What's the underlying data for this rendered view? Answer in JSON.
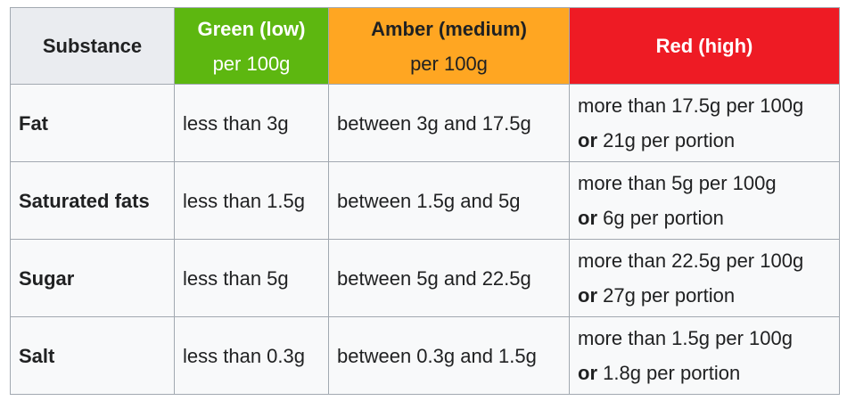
{
  "header": {
    "substance_label": "Substance",
    "green": {
      "title": "Green (low)",
      "subtitle": "per 100g",
      "color": "#5db710"
    },
    "amber": {
      "title": "Amber (medium)",
      "subtitle": "per 100g",
      "color": "#ffa622"
    },
    "red": {
      "title": "Red (high)",
      "color": "#ee1b24"
    }
  },
  "rows": [
    {
      "substance": "Fat",
      "green": "less than 3g",
      "amber": "between 3g and 17.5g",
      "red_line1": "more than 17.5g per 100g",
      "red_or": "or",
      "red_line2": " 21g per portion"
    },
    {
      "substance": "Saturated fats",
      "green": "less than 1.5g",
      "amber": "between 1.5g and 5g",
      "red_line1": "more than 5g per 100g",
      "red_or": "or",
      "red_line2": " 6g per portion"
    },
    {
      "substance": "Sugar",
      "green": "less than 5g",
      "amber": "between 5g and 22.5g",
      "red_line1": "more than 22.5g per 100g",
      "red_or": "or",
      "red_line2": " 27g per portion"
    },
    {
      "substance": "Salt",
      "green": "less than 0.3g",
      "amber": "between 0.3g and 1.5g",
      "red_line1": "more than 1.5g per 100g",
      "red_or": "or",
      "red_line2": " 1.8g per portion"
    }
  ]
}
